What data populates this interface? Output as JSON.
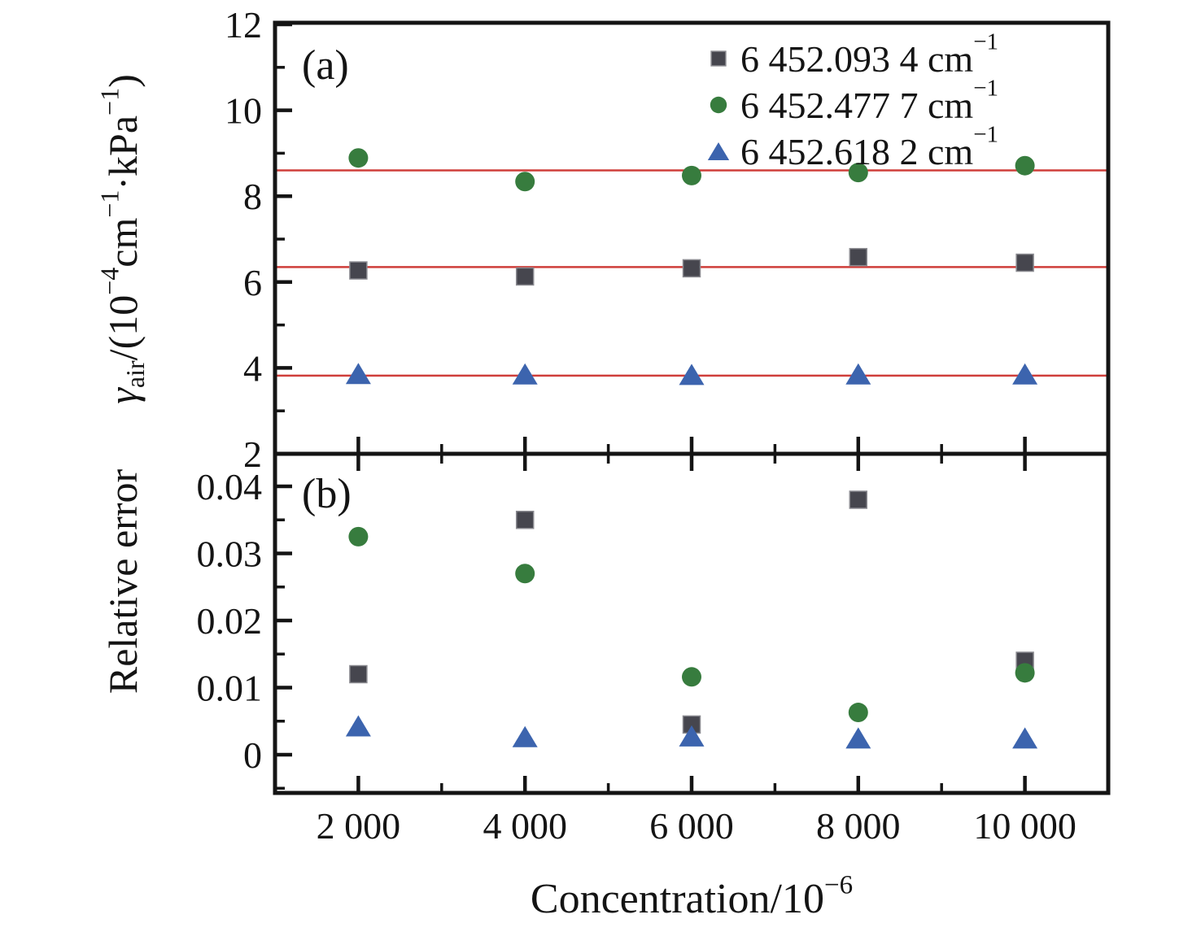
{
  "figure": {
    "background": "#ffffff",
    "panel_a_label": "(a)",
    "panel_b_label": "(b)",
    "x_axis": {
      "title_parts": [
        {
          "t": "Concentration/10"
        },
        {
          "t": "−6",
          "s": "sup"
        }
      ],
      "major_ticks": [
        {
          "v": 2000,
          "label": "2 000"
        },
        {
          "v": 4000,
          "label": "4 000"
        },
        {
          "v": 6000,
          "label": "6 000"
        },
        {
          "v": 8000,
          "label": "8 000"
        },
        {
          "v": 10000,
          "label": "10 000"
        }
      ],
      "minor_ticks": [
        3000,
        5000,
        7000,
        9000
      ],
      "range": [
        1000,
        11000
      ]
    },
    "panel_a": {
      "y_title_parts": [
        {
          "t": "γ",
          "italic": true
        },
        {
          "t": "air",
          "s": "sub"
        },
        {
          "t": "/(10"
        },
        {
          "t": "−4",
          "s": "sup"
        },
        {
          "t": "cm"
        },
        {
          "t": "−1",
          "s": "sup"
        },
        {
          "t": "·kPa"
        },
        {
          "t": "−1",
          "s": "sup"
        },
        {
          "t": ")"
        }
      ],
      "y_major_ticks": [
        {
          "v": 2,
          "label": "2"
        },
        {
          "v": 4,
          "label": "4"
        },
        {
          "v": 6,
          "label": "6"
        },
        {
          "v": 8,
          "label": "8"
        },
        {
          "v": 10,
          "label": "10"
        },
        {
          "v": 12,
          "label": "12"
        }
      ],
      "y_minor_ticks": [
        3,
        5,
        7,
        9,
        11
      ],
      "y_range": [
        2,
        12
      ],
      "fit_line_color": "#cf3e3a"
    },
    "panel_b": {
      "y_title_parts": [
        {
          "t": "Relative error"
        }
      ],
      "y_major_ticks": [
        {
          "v": 0,
          "label": "0"
        },
        {
          "v": 0.01,
          "label": "0.01"
        },
        {
          "v": 0.02,
          "label": "0.02"
        },
        {
          "v": 0.03,
          "label": "0.03"
        },
        {
          "v": 0.04,
          "label": "0.04"
        }
      ],
      "y_minor_ticks": [
        -0.005,
        0.005,
        0.015,
        0.025,
        0.035
      ],
      "y_range": [
        -0.0057,
        0.0448
      ]
    },
    "legend_labels": [
      {
        "parts": [
          {
            "t": "6 452.093 4 cm"
          },
          {
            "t": "−1",
            "s": "sup"
          }
        ]
      },
      {
        "parts": [
          {
            "t": "6 452.477 7 cm"
          },
          {
            "t": "−1",
            "s": "sup"
          }
        ]
      },
      {
        "parts": [
          {
            "t": "6 452.618 2 cm"
          },
          {
            "t": "−1",
            "s": "sup"
          }
        ]
      }
    ],
    "colors": {
      "axis": "#141414",
      "square_series": "#46464e",
      "circle_series": "#377c3e",
      "triangle_series": "#3c64ae",
      "fit_line": "#cf3e3a"
    }
  },
  "chart_data": [
    {
      "type": "scatter",
      "panel": "a",
      "xlabel": "Concentration/10⁻⁶",
      "ylabel": "γ_air/(10⁻⁴cm⁻¹·kPa⁻¹)",
      "x": [
        2000,
        4000,
        6000,
        8000,
        10000
      ],
      "xlim": [
        1000,
        11000
      ],
      "ylim": [
        2,
        12
      ],
      "grid": false,
      "legend_position": "top-right",
      "series": [
        {
          "name": "6 452.093 4 cm⁻¹",
          "marker": "square",
          "color": "#46464e",
          "values": [
            6.27,
            6.13,
            6.32,
            6.58,
            6.45
          ],
          "fit_line": 6.35
        },
        {
          "name": "6 452.477 7 cm⁻¹",
          "marker": "circle",
          "color": "#377c3e",
          "values": [
            8.89,
            8.34,
            8.48,
            8.55,
            8.71
          ],
          "fit_line": 8.6
        },
        {
          "name": "6 452.618 2 cm⁻¹",
          "marker": "triangle",
          "color": "#3c64ae",
          "values": [
            3.87,
            3.86,
            3.85,
            3.86,
            3.86
          ],
          "fit_line": 3.82
        }
      ]
    },
    {
      "type": "scatter",
      "panel": "b",
      "xlabel": "Concentration/10⁻⁶",
      "ylabel": "Relative error",
      "x": [
        2000,
        4000,
        6000,
        8000,
        10000
      ],
      "xlim": [
        1000,
        11000
      ],
      "ylim": [
        -0.0057,
        0.0448
      ],
      "grid": false,
      "series": [
        {
          "name": "6 452.093 4 cm⁻¹",
          "marker": "square",
          "color": "#46464e",
          "values": [
            0.012,
            0.035,
            0.0045,
            0.038,
            0.014
          ]
        },
        {
          "name": "6 452.477 7 cm⁻¹",
          "marker": "circle",
          "color": "#377c3e",
          "values": [
            0.0325,
            0.027,
            0.0116,
            0.0063,
            0.0122
          ]
        },
        {
          "name": "6 452.618 2 cm⁻¹",
          "marker": "triangle",
          "color": "#3c64ae",
          "values": [
            0.0043,
            0.0027,
            0.0028,
            0.0025,
            0.0025
          ]
        }
      ]
    }
  ]
}
